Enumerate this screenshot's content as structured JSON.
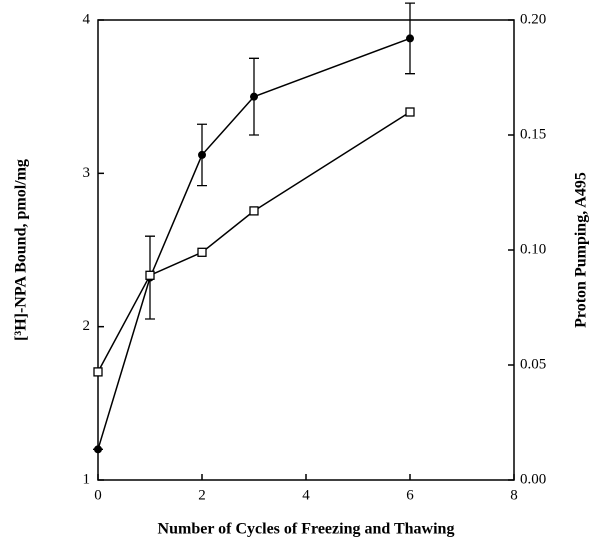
{
  "chart_data": {
    "type": "line",
    "xlabel": "Number of Cycles of Freezing and Thawing",
    "ylabel": "[³H]-NPA Bound, pmol/mg",
    "y2label": "Proton Pumping, A495",
    "xlim": [
      0,
      8
    ],
    "xticks": [
      0,
      2,
      4,
      6,
      8
    ],
    "ylim": [
      1,
      4
    ],
    "yticks": [
      1,
      2,
      3,
      4
    ],
    "y2lim": [
      0,
      0.2
    ],
    "y2ticks": [
      {
        "value": 0,
        "label": "0.00"
      },
      {
        "value": 0.05,
        "label": "0.05"
      },
      {
        "value": 0.1,
        "label": "0.10"
      },
      {
        "value": 0.15,
        "label": "0.15"
      },
      {
        "value": 0.2,
        "label": "0.20"
      }
    ],
    "series": [
      {
        "color": "#000000",
        "marker": "filled",
        "x": [
          0,
          1,
          2,
          3,
          6
        ],
        "values": [
          1.2,
          2.32,
          3.12,
          3.5,
          3.88
        ],
        "errors": [
          0,
          0.27,
          0.2,
          0.25,
          0.23
        ]
      },
      {
        "color": "#000000",
        "marker": "open",
        "axis": "y2",
        "x": [
          0,
          1,
          2,
          3,
          6
        ],
        "values": [
          0.047,
          0.089,
          0.099,
          0.117,
          0.16
        ]
      }
    ]
  }
}
